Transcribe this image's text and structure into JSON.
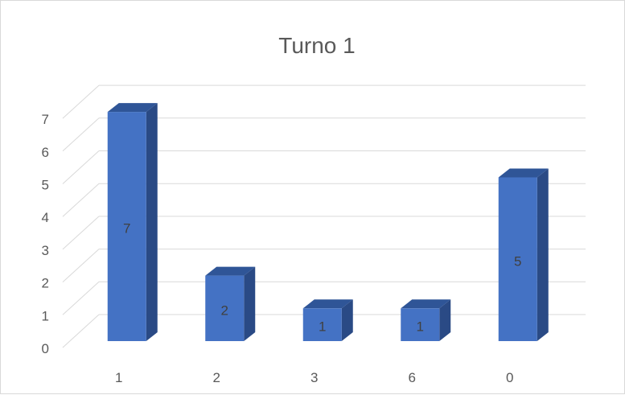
{
  "chart_data": {
    "type": "bar",
    "title": "Turno 1",
    "categories": [
      "1",
      "2",
      "3",
      "6",
      "0"
    ],
    "values": [
      7,
      2,
      1,
      1,
      5
    ],
    "data_labels": [
      "7",
      "2",
      "1",
      "1",
      "5"
    ],
    "ylim": [
      0,
      7
    ],
    "y_ticks": [
      "0",
      "1",
      "2",
      "3",
      "4",
      "5",
      "6",
      "7"
    ],
    "grid": true,
    "legend": "none",
    "colors": {
      "front": "#4472c4",
      "top": "#2f5597",
      "side": "#2a4a85",
      "grid": "#d9d9d9"
    }
  }
}
